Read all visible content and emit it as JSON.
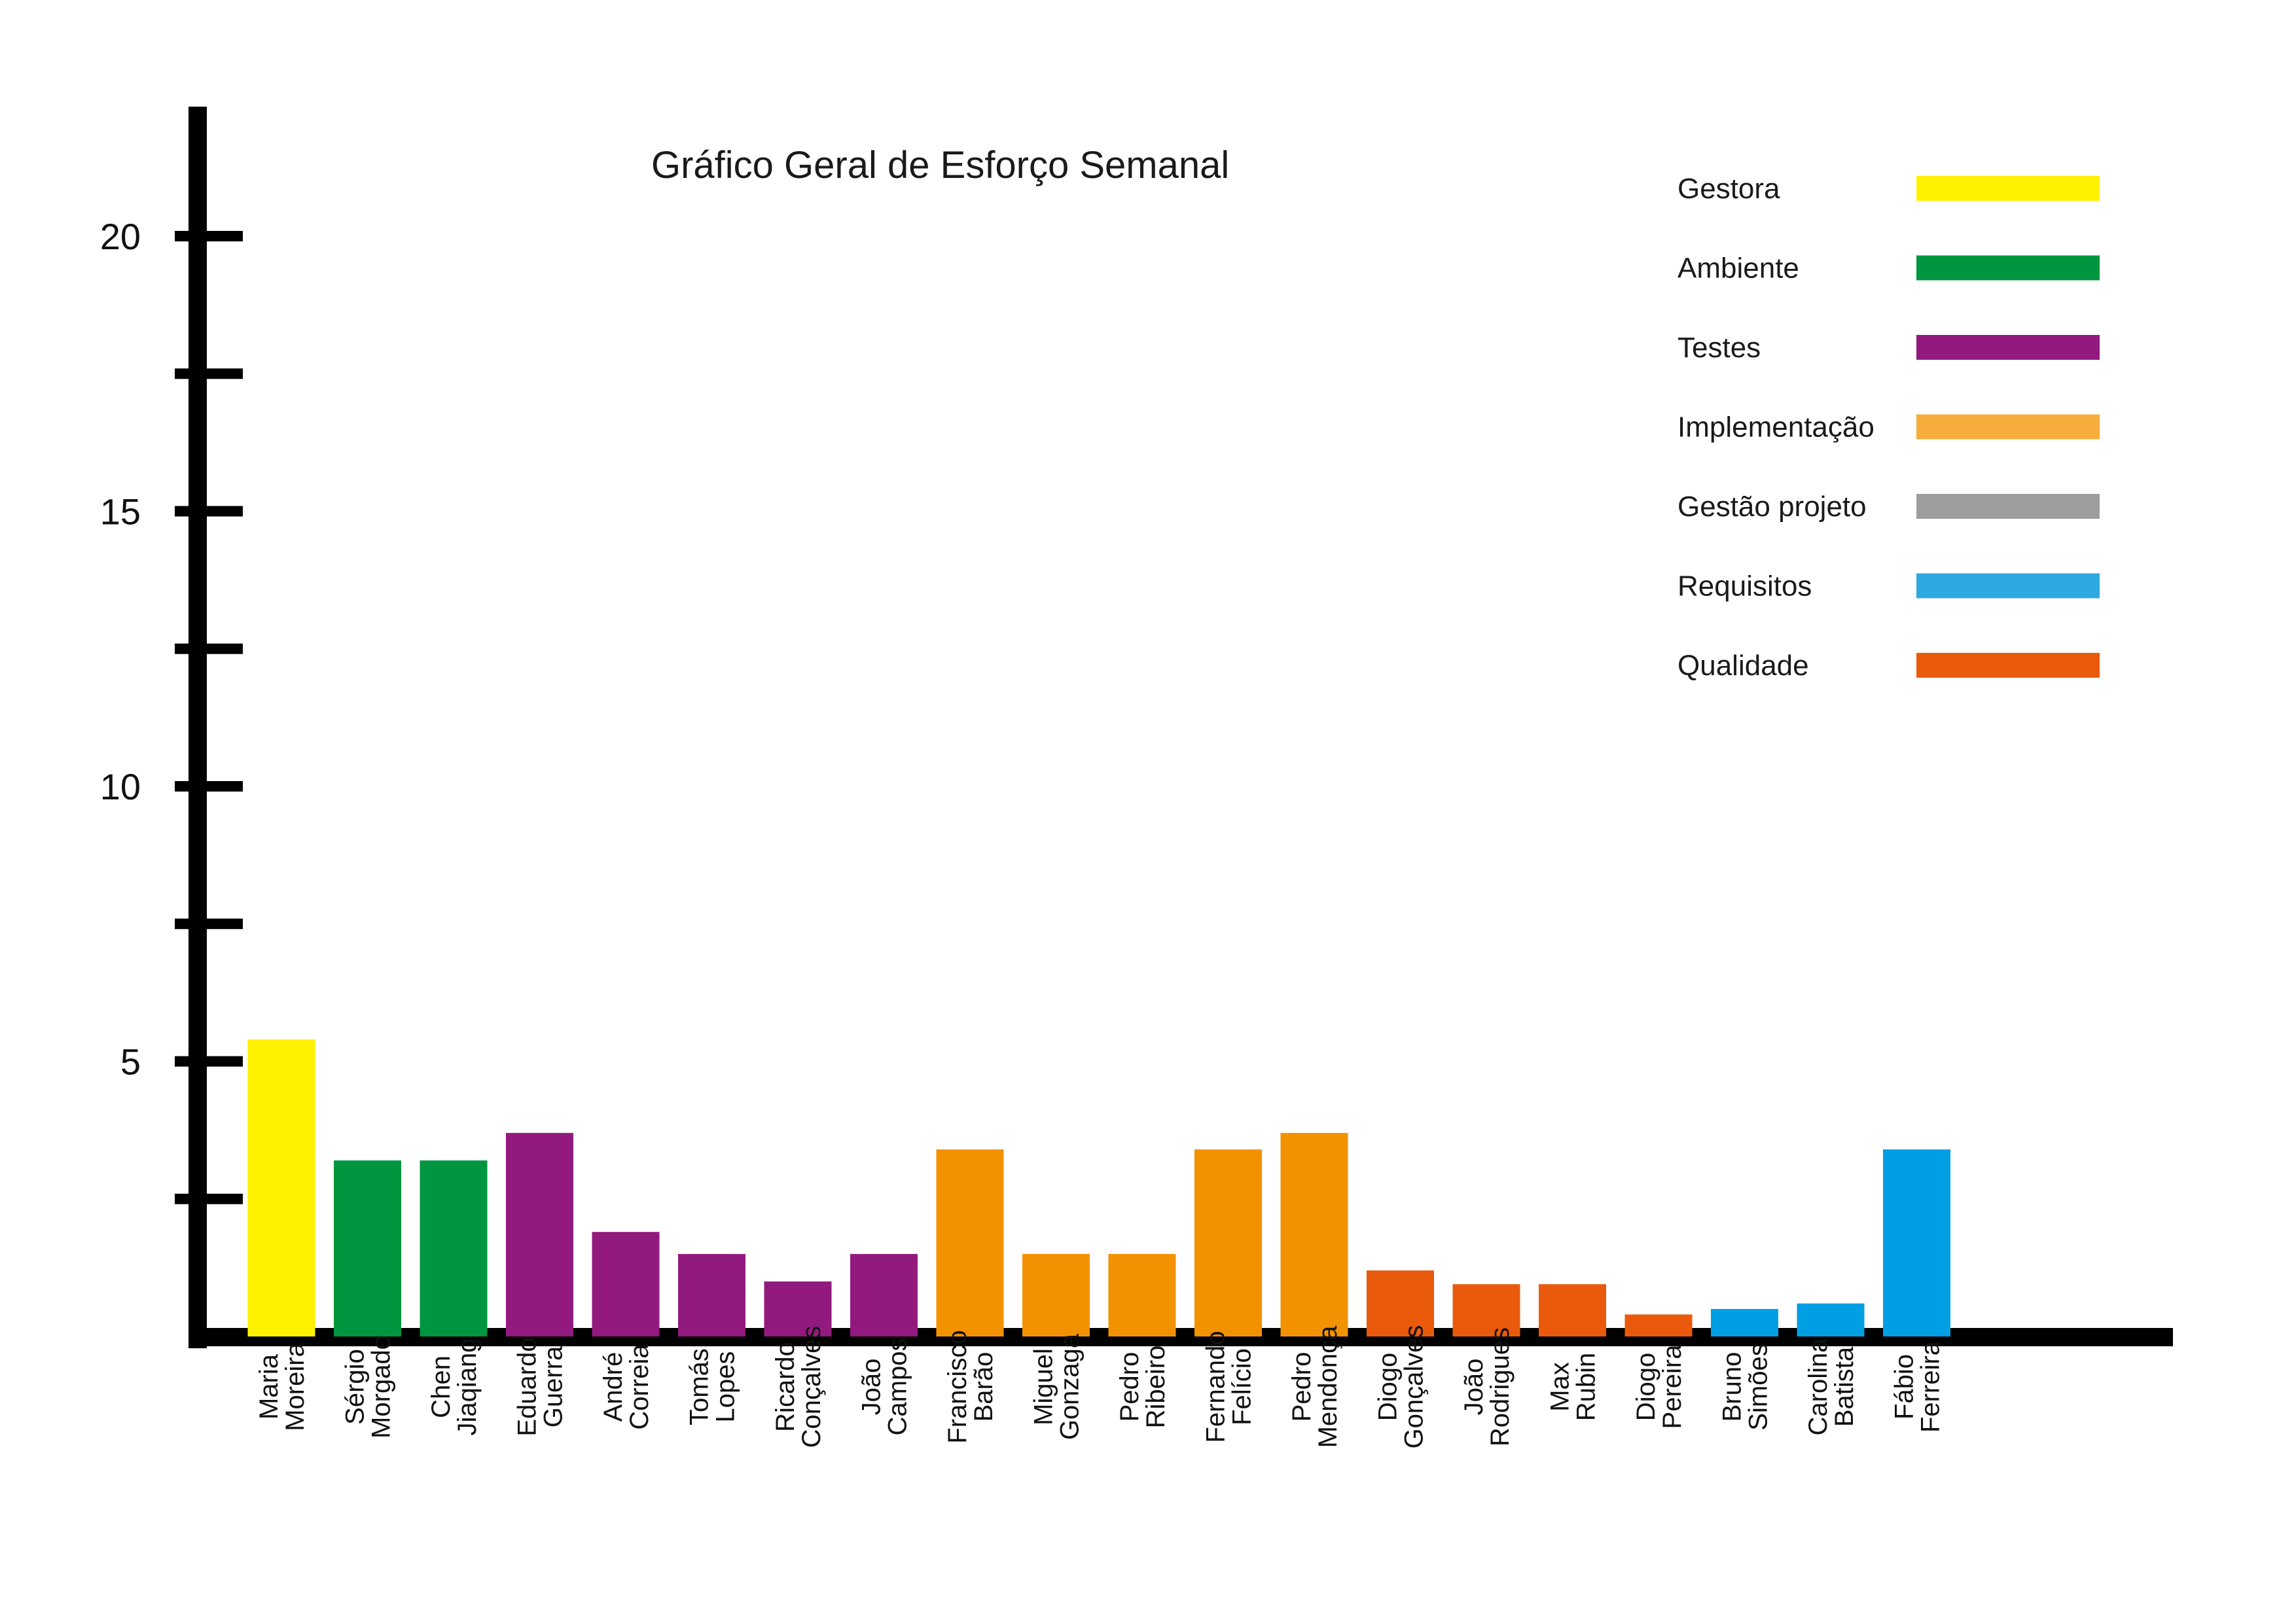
{
  "chart_data": {
    "type": "bar",
    "title": "Gráfico Geral de Esforço Semanal",
    "xlabel": "",
    "ylabel": "",
    "ylim": [
      0,
      22
    ],
    "yticks": [
      2.5,
      5,
      7.5,
      10,
      12.5,
      15,
      17.5,
      20
    ],
    "ytick_labels": [
      {
        "value": 5,
        "label": "5"
      },
      {
        "value": 10,
        "label": "10"
      },
      {
        "value": 15,
        "label": "15"
      },
      {
        "value": 20,
        "label": "20"
      }
    ],
    "grid": false,
    "legend_position": "top-right",
    "categories": [
      [
        "Maria",
        "Moreira"
      ],
      [
        "Sérgio",
        "Morgado"
      ],
      [
        "Chen",
        "Jiaqiang"
      ],
      [
        "Eduardo",
        "Guerra"
      ],
      [
        "André",
        "Correia"
      ],
      [
        "Tomás",
        "Lopes"
      ],
      [
        "Ricardo",
        "Conçalves"
      ],
      [
        "João",
        "Campos"
      ],
      [
        "Francisco",
        "Barão"
      ],
      [
        "Miguel",
        "Gonzaga"
      ],
      [
        "Pedro",
        "Ribeiro"
      ],
      [
        "Fernando",
        "Felício"
      ],
      [
        "Pedro",
        "Mendonça"
      ],
      [
        "Diogo",
        "Gonçalves"
      ],
      [
        "João",
        "Rodrigues"
      ],
      [
        "Max",
        "Rubin"
      ],
      [
        "Diogo",
        "Pereira"
      ],
      [
        "Bruno",
        "Simões"
      ],
      [
        "Carolina",
        "Batista"
      ],
      [
        "Fábio",
        "Ferreira"
      ]
    ],
    "values": [
      5.4,
      3.2,
      3.2,
      3.7,
      1.9,
      1.5,
      1.0,
      1.5,
      3.4,
      1.5,
      1.5,
      3.4,
      3.7,
      1.2,
      0.95,
      0.95,
      0.4,
      0.5,
      0.6,
      3.4
    ],
    "groups": [
      "Gestora",
      "Ambiente",
      "Ambiente",
      "Testes",
      "Testes",
      "Testes",
      "Testes",
      "Testes",
      "Implementação",
      "Implementação",
      "Implementação",
      "Implementação",
      "Implementação",
      "Qualidade",
      "Qualidade",
      "Qualidade",
      "Qualidade",
      "Requisitos",
      "Requisitos",
      "Requisitos"
    ],
    "bar_colors": [
      "#fff200",
      "#00963f",
      "#00963f",
      "#921a7e",
      "#921a7e",
      "#921a7e",
      "#921a7e",
      "#921a7e",
      "#f39200",
      "#f39200",
      "#f39200",
      "#f39200",
      "#f39200",
      "#e95a0c",
      "#e95a0c",
      "#e95a0c",
      "#e95a0c",
      "#009fe3",
      "#009fe3",
      "#009fe3"
    ],
    "legend": [
      {
        "label": "Gestora",
        "color": "#fff200"
      },
      {
        "label": "Ambiente",
        "color": "#00963f"
      },
      {
        "label": "Testes",
        "color": "#921a7e"
      },
      {
        "label": "Implementação",
        "color": "#f7ad3b"
      },
      {
        "label": "Gestão projeto",
        "color": "#9d9d9c"
      },
      {
        "label": "Requisitos",
        "color": "#2fa8e0"
      },
      {
        "label": "Qualidade",
        "color": "#e95a0c"
      }
    ]
  }
}
